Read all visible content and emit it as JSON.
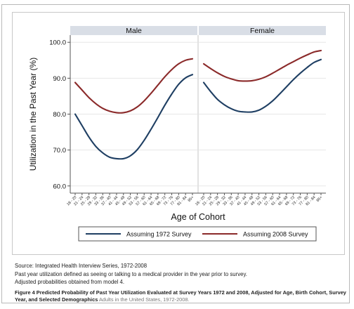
{
  "chart_data": {
    "type": "line",
    "facets": [
      "Male",
      "Female"
    ],
    "ylabel": "Utilization in the Past Year (%)",
    "xlabel": "Age of Cohort",
    "ylim": [
      58,
      102
    ],
    "yticks": [
      "60.0",
      "70.0",
      "80.0",
      "90.0",
      "100.0"
    ],
    "ytick_values": [
      60,
      70,
      80,
      90,
      100
    ],
    "categories": [
      "18 - 20",
      "21 - 24",
      "25 - 28",
      "29 - 32",
      "33 - 36",
      "37 - 40",
      "41 - 44",
      "45 - 48",
      "49 - 52",
      "53 - 56",
      "57 - 60",
      "61 - 64",
      "65 - 68",
      "69 - 72",
      "73 - 76",
      "77 - 80",
      "81 - 84",
      "85+"
    ],
    "series": [
      {
        "name": "Assuming 1972 Survey",
        "color": "#1f3f63",
        "values": {
          "Male": [
            80.0,
            76.8,
            73.6,
            71.0,
            69.2,
            68.0,
            67.6,
            67.6,
            68.4,
            70.1,
            72.7,
            75.8,
            79.1,
            82.5,
            85.6,
            88.3,
            90.1,
            91.0
          ],
          "Female": [
            88.8,
            86.3,
            84.1,
            82.6,
            81.5,
            80.8,
            80.6,
            80.6,
            81.1,
            82.2,
            83.7,
            85.6,
            87.6,
            89.6,
            91.4,
            93.0,
            94.4,
            95.2
          ]
        }
      },
      {
        "name": "Assuming 2008 Survey",
        "color": "#8b2a2a",
        "values": {
          "Male": [
            88.8,
            86.7,
            84.6,
            82.9,
            81.6,
            80.8,
            80.4,
            80.4,
            80.9,
            82.0,
            83.7,
            85.8,
            88.1,
            90.4,
            92.4,
            94.0,
            95.0,
            95.4
          ],
          "Female": [
            94.0,
            92.7,
            91.5,
            90.5,
            89.8,
            89.3,
            89.2,
            89.3,
            89.7,
            90.4,
            91.4,
            92.5,
            93.6,
            94.6,
            95.6,
            96.5,
            97.3,
            97.7
          ]
        }
      }
    ]
  },
  "notes": [
    "Source: Integrated Health Interview Series, 1972-2008",
    " Past year utilization defined as seeing or talking to a medical provider in the year prior to survey.",
    " Adjusted probabilities obtained from model 4."
  ],
  "caption": {
    "bold": "Figure 4 Predicted Probability of Past Year Utilization Evaluated at Survey Years 1972 and 2008, Adjusted for Age, Birth Cohort, Survey Year, and Selected Demographics",
    "soft": "Adults in the United States, 1972-2008."
  }
}
